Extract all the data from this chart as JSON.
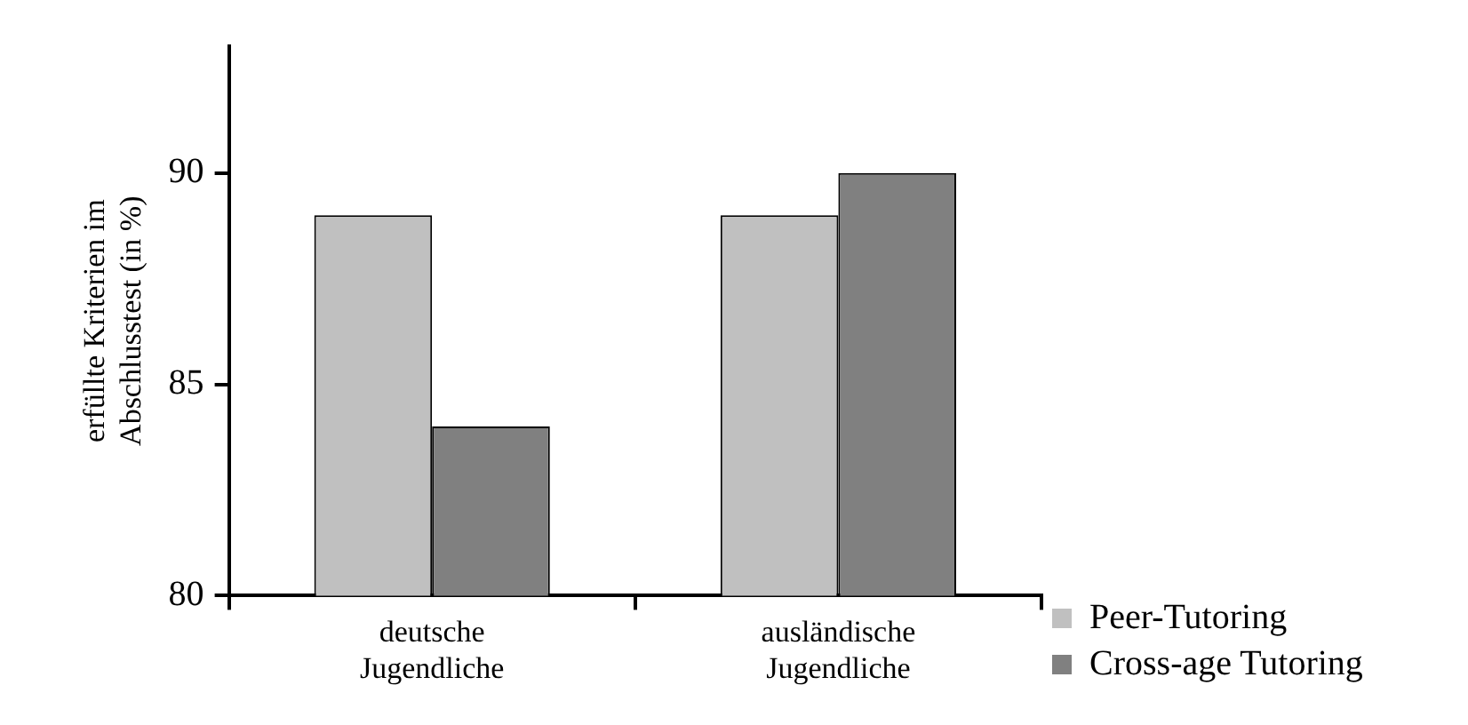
{
  "chart_data": {
    "type": "bar",
    "ylabel": "erfüllte Kriterien im\nAbschlusstest (in %)",
    "categories": [
      "deutsche\nJugendliche",
      "ausländische\nJugendliche"
    ],
    "series": [
      {
        "name": "Peer-Tutoring",
        "color": "#c0c0c0",
        "values": [
          89,
          89
        ]
      },
      {
        "name": "Cross-age Tutoring",
        "color": "#808080",
        "values": [
          84,
          90
        ]
      }
    ],
    "ylim": [
      80,
      93
    ],
    "yticks": [
      80,
      85,
      90
    ],
    "grid": false,
    "legend": "bottom right"
  }
}
